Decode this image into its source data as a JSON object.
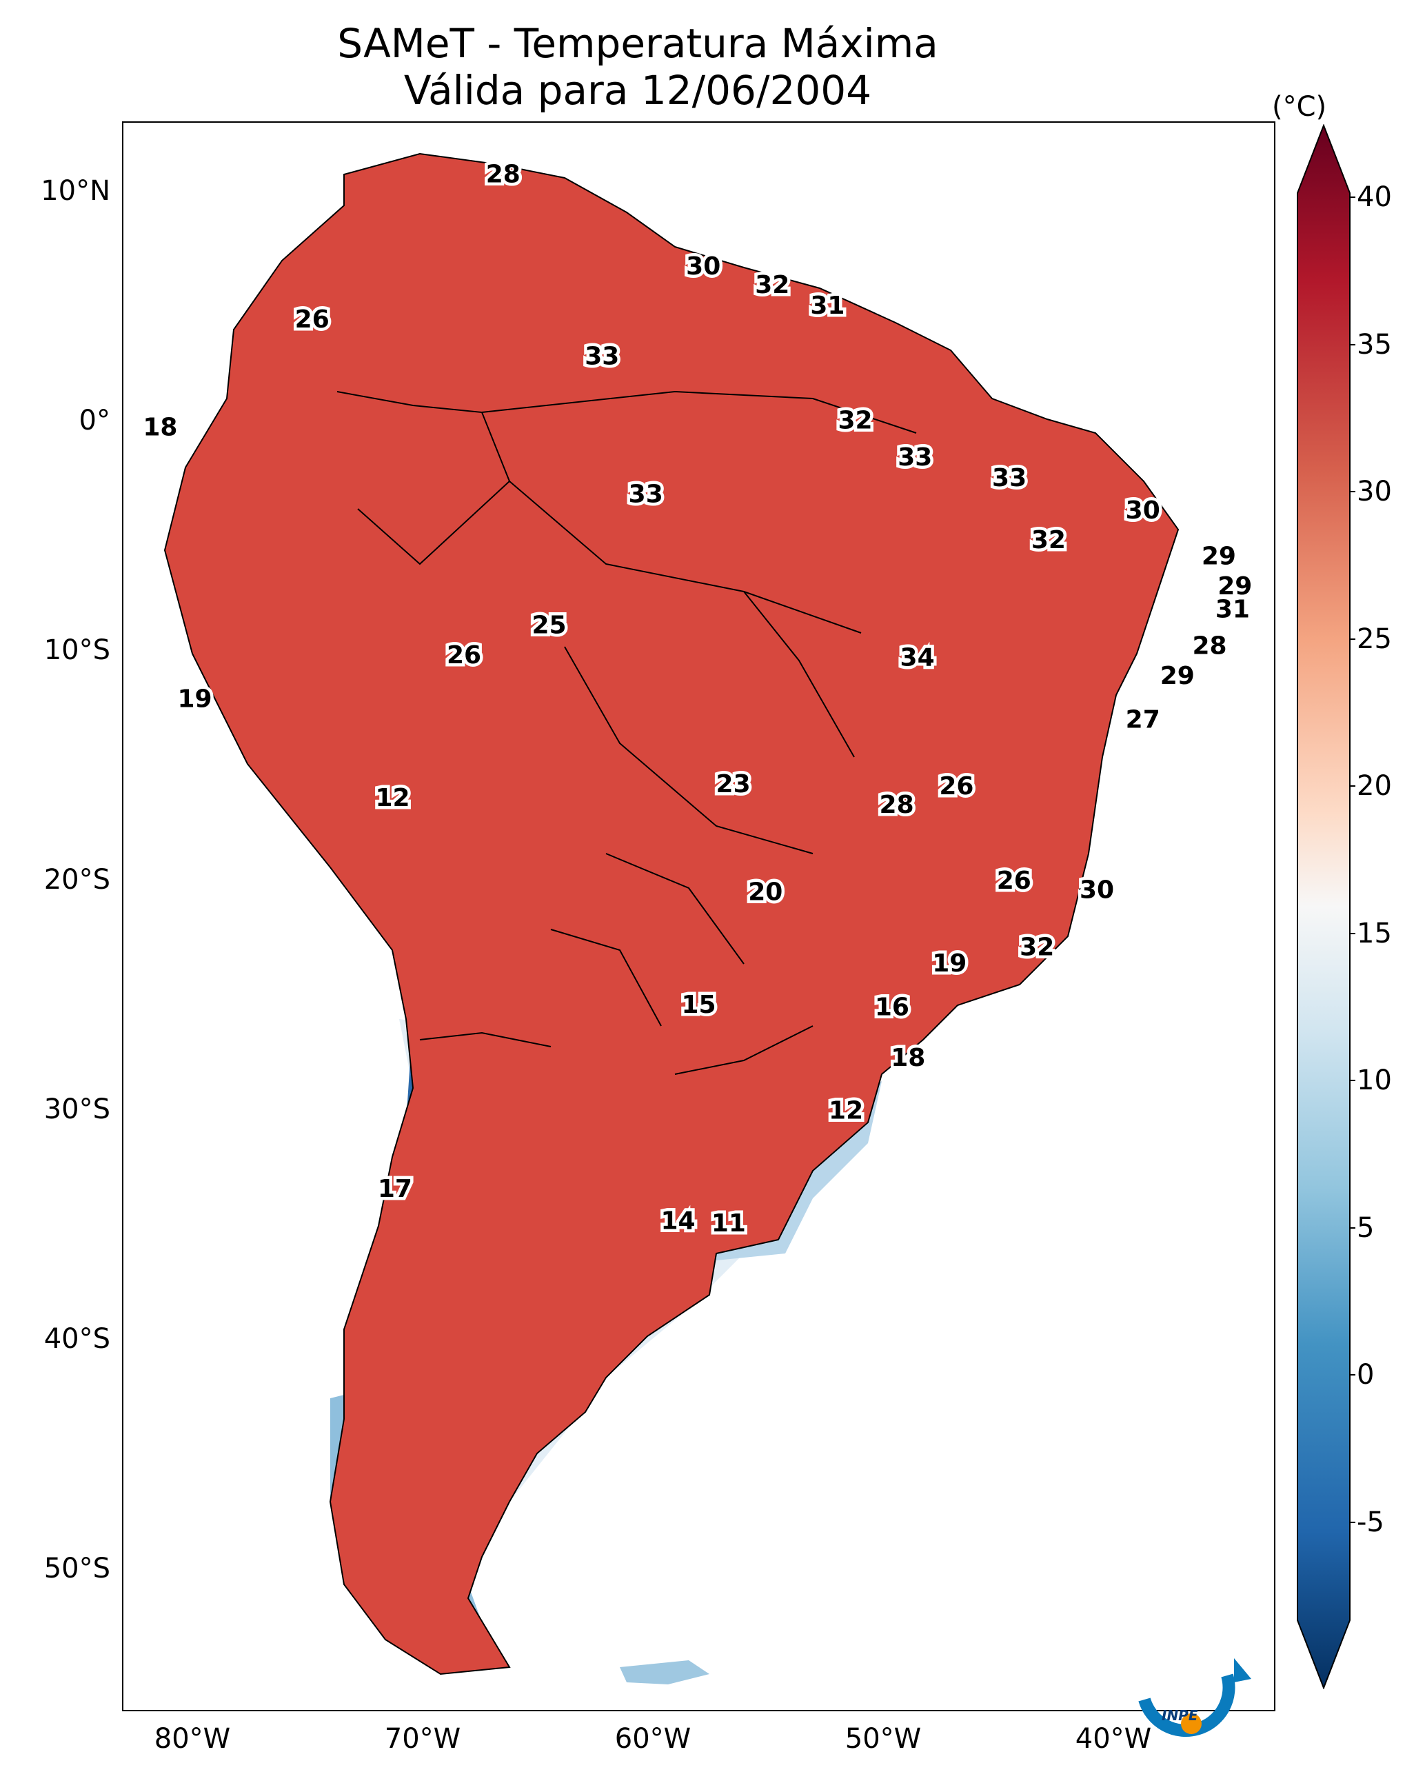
{
  "title": {
    "line1": "SAMeT - Temperatura Máxima",
    "line2": "Válida para 12/06/2004"
  },
  "map": {
    "lat_labels": [
      "10°N",
      "0°",
      "10°S",
      "20°S",
      "30°S",
      "40°S",
      "50°S"
    ],
    "lon_labels": [
      "80°W",
      "70°W",
      "60°W",
      "50°W",
      "40°W"
    ],
    "extent": {
      "lon": [
        -83,
        -33
      ],
      "lat": [
        13,
        -56
      ]
    },
    "value_labels": [
      {
        "text": "28",
        "lon": -66.5,
        "lat": 10.7
      },
      {
        "text": "30",
        "lon": -57.8,
        "lat": 6.7
      },
      {
        "text": "32",
        "lon": -54.8,
        "lat": 5.9
      },
      {
        "text": "31",
        "lon": -52.4,
        "lat": 5.0
      },
      {
        "text": "26",
        "lon": -74.8,
        "lat": 4.4
      },
      {
        "text": "33",
        "lon": -62.2,
        "lat": 2.8
      },
      {
        "text": "18",
        "lon": -81.4,
        "lat": -0.3
      },
      {
        "text": "32",
        "lon": -51.2,
        "lat": 0.0
      },
      {
        "text": "33",
        "lon": -48.6,
        "lat": -1.6
      },
      {
        "text": "33",
        "lon": -44.5,
        "lat": -2.5
      },
      {
        "text": "30",
        "lon": -38.7,
        "lat": -3.9
      },
      {
        "text": "33",
        "lon": -60.3,
        "lat": -3.2
      },
      {
        "text": "32",
        "lon": -42.8,
        "lat": -5.2
      },
      {
        "text": "29",
        "lon": -35.4,
        "lat": -5.9
      },
      {
        "text": "29",
        "lon": -34.7,
        "lat": -7.2
      },
      {
        "text": "31",
        "lon": -34.8,
        "lat": -8.2
      },
      {
        "text": "28",
        "lon": -35.8,
        "lat": -9.8
      },
      {
        "text": "25",
        "lon": -64.5,
        "lat": -8.9
      },
      {
        "text": "26",
        "lon": -68.2,
        "lat": -10.2
      },
      {
        "text": "34",
        "lon": -48.5,
        "lat": -10.3
      },
      {
        "text": "29",
        "lon": -37.2,
        "lat": -11.1
      },
      {
        "text": "19",
        "lon": -79.9,
        "lat": -12.1
      },
      {
        "text": "27",
        "lon": -38.7,
        "lat": -13.0
      },
      {
        "text": "23",
        "lon": -56.5,
        "lat": -15.8
      },
      {
        "text": "26",
        "lon": -46.8,
        "lat": -15.9
      },
      {
        "text": "28",
        "lon": -49.4,
        "lat": -16.7
      },
      {
        "text": "12",
        "lon": -71.3,
        "lat": -16.4
      },
      {
        "text": "26",
        "lon": -44.3,
        "lat": -20.0
      },
      {
        "text": "30",
        "lon": -40.7,
        "lat": -20.4
      },
      {
        "text": "20",
        "lon": -55.1,
        "lat": -20.5
      },
      {
        "text": "32",
        "lon": -43.3,
        "lat": -22.9
      },
      {
        "text": "19",
        "lon": -47.1,
        "lat": -23.6
      },
      {
        "text": "15",
        "lon": -58.0,
        "lat": -25.4
      },
      {
        "text": "16",
        "lon": -49.6,
        "lat": -25.5
      },
      {
        "text": "18",
        "lon": -48.9,
        "lat": -27.7
      },
      {
        "text": "12",
        "lon": -51.6,
        "lat": -30.0
      },
      {
        "text": "17",
        "lon": -71.2,
        "lat": -33.4
      },
      {
        "text": "14",
        "lon": -58.9,
        "lat": -34.8
      },
      {
        "text": "11",
        "lon": -56.7,
        "lat": -34.9
      }
    ]
  },
  "colorbar": {
    "unit": "(°C)",
    "ticks": [
      "40",
      "35",
      "30",
      "25",
      "20",
      "15",
      "10",
      "5",
      "0",
      "-5"
    ],
    "range": [
      -5,
      40
    ],
    "colormap": [
      "#67001f",
      "#b2182b",
      "#d6604d",
      "#f4a582",
      "#fddbc7",
      "#f7f7f7",
      "#d1e5f0",
      "#92c5de",
      "#4393c3",
      "#2166ac",
      "#053061"
    ]
  },
  "logo": {
    "text": "INPE"
  }
}
